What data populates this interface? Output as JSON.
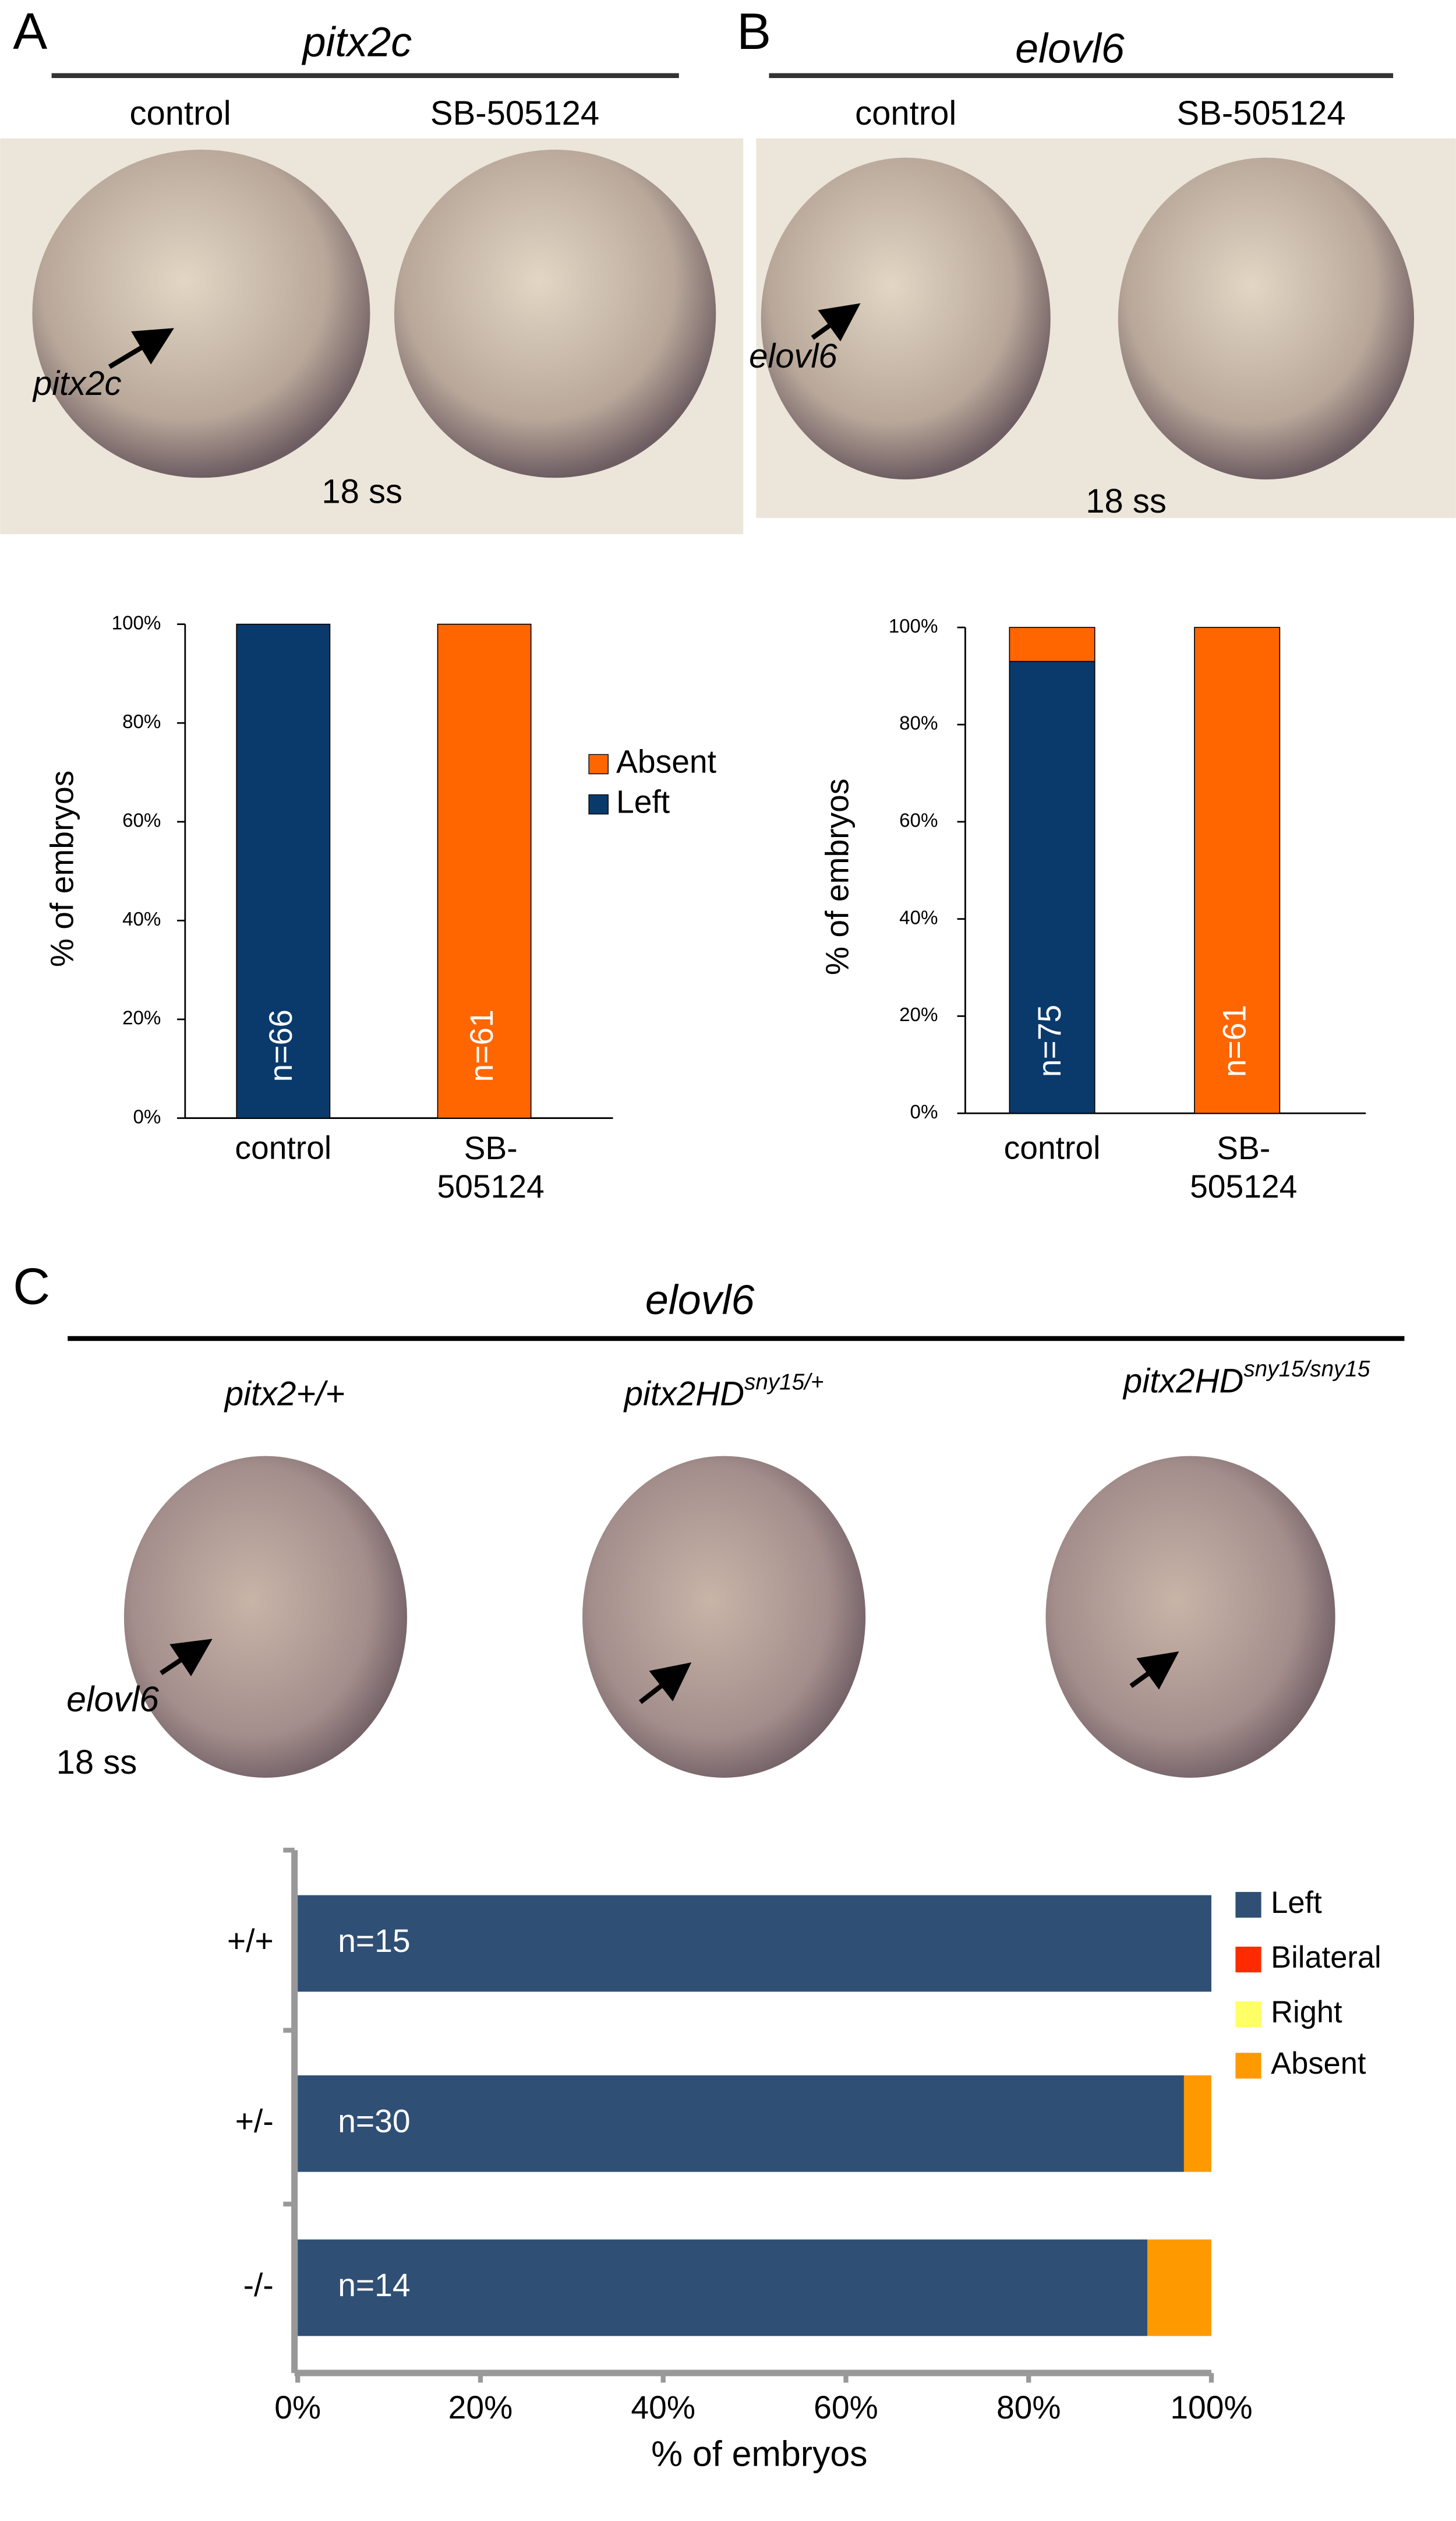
{
  "panels": {
    "A": {
      "letter": "A",
      "gene": "pitx2c",
      "conditions": [
        "control",
        "SB-505124"
      ],
      "arrow_label": "pitx2c",
      "stage": "18 ss"
    },
    "B": {
      "letter": "B",
      "gene": "elovl6",
      "conditions": [
        "control",
        "SB-505124"
      ],
      "arrow_label": "elovl6",
      "stage": "18 ss"
    },
    "C": {
      "letter": "C",
      "gene": "elovl6",
      "genotypes": [
        {
          "text": "pitx2+/+"
        },
        {
          "text": "pitx2HD",
          "sup": "sny15/+"
        },
        {
          "text": "pitx2HD",
          "sup": "sny15/sny15"
        }
      ],
      "arrow_label": "elovl6",
      "stage": "18 ss"
    }
  },
  "chart_data": [
    {
      "type": "bar",
      "stacked": true,
      "legend": true,
      "ylabel": "% of embryos",
      "categories": [
        "control",
        "SB-\n505124"
      ],
      "series": [
        {
          "name": "Left",
          "color": "#0a3a6c",
          "values": [
            100,
            0
          ]
        },
        {
          "name": "Absent",
          "color": "#ff6600",
          "values": [
            0,
            100
          ]
        }
      ],
      "bar_labels": [
        "n=66",
        "n=61"
      ],
      "ylim": [
        0,
        100
      ],
      "yticks": [
        {
          "value": 0,
          "label": "0%"
        },
        {
          "value": 20,
          "label": "20%"
        },
        {
          "value": 40,
          "label": "40%"
        },
        {
          "value": 60,
          "label": "60%"
        },
        {
          "value": 80,
          "label": "80%"
        },
        {
          "value": 100,
          "label": "100%"
        }
      ]
    },
    {
      "type": "bar",
      "stacked": true,
      "legend": false,
      "ylabel": "% of embryos",
      "categories": [
        "control",
        "SB-\n505124"
      ],
      "series": [
        {
          "name": "Left",
          "color": "#0a3a6c",
          "values": [
            93,
            0
          ]
        },
        {
          "name": "Absent",
          "color": "#ff6600",
          "values": [
            7,
            100
          ]
        }
      ],
      "bar_labels": [
        "n=75",
        "n=61"
      ],
      "ylim": [
        0,
        100
      ],
      "yticks": [
        {
          "value": 0,
          "label": "0%"
        },
        {
          "value": 20,
          "label": "20%"
        },
        {
          "value": 40,
          "label": "40%"
        },
        {
          "value": 60,
          "label": "60%"
        },
        {
          "value": 80,
          "label": "80%"
        },
        {
          "value": 100,
          "label": "100%"
        }
      ]
    },
    {
      "type": "hbar",
      "stacked": true,
      "legend": true,
      "xlabel": "% of embryos",
      "categories": [
        "+/+",
        "+/-",
        "-/-"
      ],
      "series": [
        {
          "name": "Left",
          "color": "#2f4f75",
          "values": [
            100,
            97,
            93
          ]
        },
        {
          "name": "Bilateral",
          "color": "#ff2a00",
          "values": [
            0,
            0,
            0
          ]
        },
        {
          "name": "Right",
          "color": "#ffff66",
          "values": [
            0,
            0,
            0
          ]
        },
        {
          "name": "Absent",
          "color": "#ff9900",
          "values": [
            0,
            3,
            7
          ]
        }
      ],
      "bar_labels": [
        "n=15",
        "n=30",
        "n=14"
      ],
      "xlim": [
        0,
        100
      ],
      "xticks": [
        {
          "value": 0,
          "label": "0%"
        },
        {
          "value": 20,
          "label": "20%"
        },
        {
          "value": 40,
          "label": "40%"
        },
        {
          "value": 60,
          "label": "60%"
        },
        {
          "value": 80,
          "label": "80%"
        },
        {
          "value": 100,
          "label": "100%"
        }
      ]
    }
  ]
}
